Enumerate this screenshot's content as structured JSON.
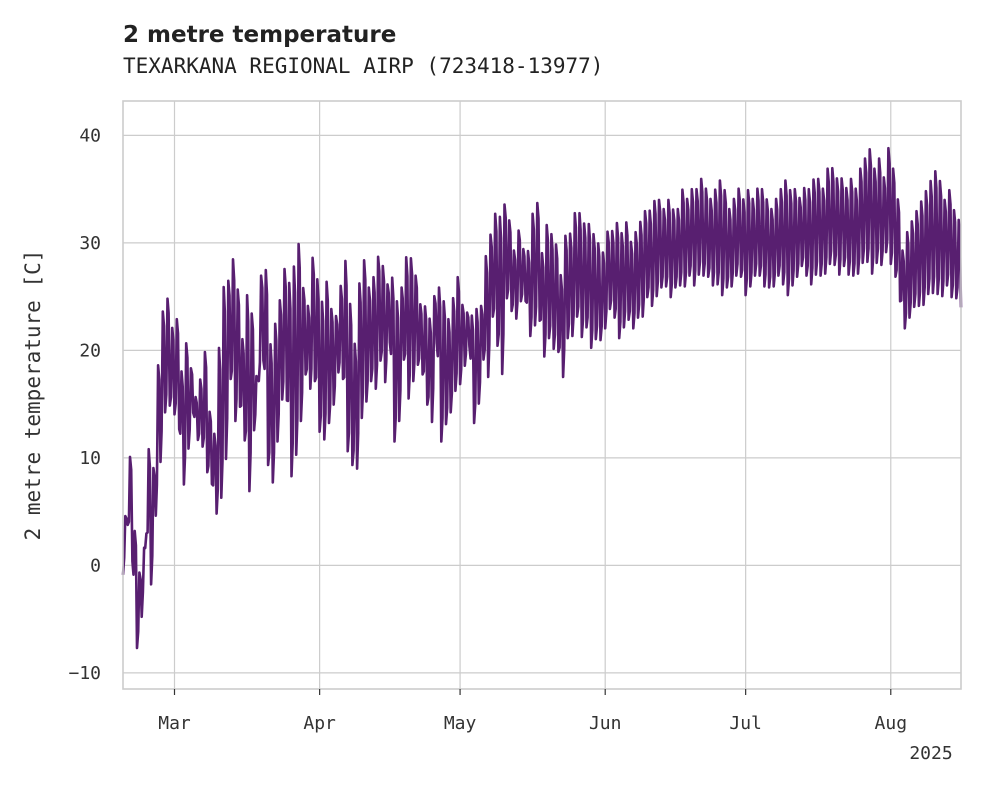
{
  "chart_data": {
    "type": "line",
    "title": "2 metre temperature",
    "subtitle": "TEXARKANA REGIONAL AIRP (723418-13977)",
    "xlabel": "",
    "ylabel": "2 metre temperature [C]",
    "x_range": [
      "2025-02-18",
      "2025-08-16"
    ],
    "ylim": [
      -11.5,
      43.2
    ],
    "grid": true,
    "line_color": "#581f70",
    "x_ticks": [
      {
        "date": "2025-03-01",
        "label": "Mar"
      },
      {
        "date": "2025-04-01",
        "label": "Apr"
      },
      {
        "date": "2025-05-01",
        "label": "May"
      },
      {
        "date": "2025-06-01",
        "label": "Jun"
      },
      {
        "date": "2025-07-01",
        "label": "Jul"
      },
      {
        "date": "2025-08-01",
        "label": "Aug"
      }
    ],
    "x_offset_label": "2025",
    "y_ticks": [
      -10,
      0,
      10,
      20,
      30,
      40
    ],
    "series": [
      {
        "name": "",
        "x": [
          "2025-02-18",
          "2025-02-19",
          "2025-02-20",
          "2025-02-21",
          "2025-02-22",
          "2025-02-23",
          "2025-02-24",
          "2025-02-25",
          "2025-02-26",
          "2025-02-27",
          "2025-02-28",
          "2025-03-01",
          "2025-03-02",
          "2025-03-03",
          "2025-03-04",
          "2025-03-05",
          "2025-03-06",
          "2025-03-07",
          "2025-03-08",
          "2025-03-09",
          "2025-03-10",
          "2025-03-11",
          "2025-03-12",
          "2025-03-13",
          "2025-03-14",
          "2025-03-15",
          "2025-03-16",
          "2025-03-17",
          "2025-03-18",
          "2025-03-19",
          "2025-03-20",
          "2025-03-21",
          "2025-03-22",
          "2025-03-23",
          "2025-03-24",
          "2025-03-25",
          "2025-03-26",
          "2025-03-27",
          "2025-03-28",
          "2025-03-29",
          "2025-03-30",
          "2025-03-31",
          "2025-04-01",
          "2025-04-02",
          "2025-04-03",
          "2025-04-04",
          "2025-04-05",
          "2025-04-06",
          "2025-04-07",
          "2025-04-08",
          "2025-04-09",
          "2025-04-10",
          "2025-04-11",
          "2025-04-12",
          "2025-04-13",
          "2025-04-14",
          "2025-04-15",
          "2025-04-16",
          "2025-04-17",
          "2025-04-18",
          "2025-04-19",
          "2025-04-20",
          "2025-04-21",
          "2025-04-22",
          "2025-04-23",
          "2025-04-24",
          "2025-04-25",
          "2025-04-26",
          "2025-04-27",
          "2025-04-28",
          "2025-04-29",
          "2025-04-30",
          "2025-05-01",
          "2025-05-02",
          "2025-05-03",
          "2025-05-04",
          "2025-05-05",
          "2025-05-06",
          "2025-05-07",
          "2025-05-08",
          "2025-05-09",
          "2025-05-10",
          "2025-05-11",
          "2025-05-12",
          "2025-05-13",
          "2025-05-14",
          "2025-05-15",
          "2025-05-16",
          "2025-05-17",
          "2025-05-18",
          "2025-05-19",
          "2025-05-20",
          "2025-05-21",
          "2025-05-22",
          "2025-05-23",
          "2025-05-24",
          "2025-05-25",
          "2025-05-26",
          "2025-05-27",
          "2025-05-28",
          "2025-05-29",
          "2025-05-30",
          "2025-05-31",
          "2025-06-01",
          "2025-06-02",
          "2025-06-03",
          "2025-06-04",
          "2025-06-05",
          "2025-06-06",
          "2025-06-07",
          "2025-06-08",
          "2025-06-09",
          "2025-06-10",
          "2025-06-11",
          "2025-06-12",
          "2025-06-13",
          "2025-06-14",
          "2025-06-15",
          "2025-06-16",
          "2025-06-17",
          "2025-06-18",
          "2025-06-19",
          "2025-06-20",
          "2025-06-21",
          "2025-06-22",
          "2025-06-23",
          "2025-06-24",
          "2025-06-25",
          "2025-06-26",
          "2025-06-27",
          "2025-06-28",
          "2025-06-29",
          "2025-06-30",
          "2025-07-01",
          "2025-07-02",
          "2025-07-03",
          "2025-07-04",
          "2025-07-05",
          "2025-07-06",
          "2025-07-07",
          "2025-07-08",
          "2025-07-09",
          "2025-07-10",
          "2025-07-11",
          "2025-07-12",
          "2025-07-13",
          "2025-07-14",
          "2025-07-15",
          "2025-07-16",
          "2025-07-17",
          "2025-07-18",
          "2025-07-19",
          "2025-07-20",
          "2025-07-21",
          "2025-07-22",
          "2025-07-23",
          "2025-07-24",
          "2025-07-25",
          "2025-07-26",
          "2025-07-27",
          "2025-07-28",
          "2025-07-29",
          "2025-07-30",
          "2025-07-31",
          "2025-08-01",
          "2025-08-02",
          "2025-08-03",
          "2025-08-04",
          "2025-08-05",
          "2025-08-06",
          "2025-08-07",
          "2025-08-08",
          "2025-08-09",
          "2025-08-10",
          "2025-08-11",
          "2025-08-12",
          "2025-08-13",
          "2025-08-14",
          "2025-08-15",
          "2025-08-16"
        ],
        "daily_min": [
          -1.5,
          3,
          0,
          -8.5,
          -5.5,
          2,
          -3,
          3,
          8,
          13,
          14,
          13,
          12,
          6,
          10,
          14,
          11,
          10,
          8,
          7,
          3,
          4,
          8,
          16,
          12,
          14,
          10,
          5,
          12,
          16,
          18,
          8,
          6,
          10,
          14,
          14,
          6,
          8,
          12,
          17,
          15,
          16,
          11,
          10,
          12,
          14,
          17,
          16,
          9,
          8,
          7,
          12,
          14,
          16,
          15,
          18,
          16,
          20,
          10,
          12,
          18,
          14,
          16,
          18,
          17,
          14,
          12,
          20,
          10,
          12,
          13,
          15,
          16,
          18,
          20,
          12,
          14,
          18,
          16,
          22,
          19,
          16,
          24,
          23,
          22,
          24,
          24,
          20,
          21,
          22,
          18,
          20,
          19,
          19,
          16,
          20,
          20,
          22,
          20,
          21,
          19,
          20,
          20,
          21,
          23,
          22,
          20,
          21,
          22,
          21,
          22,
          22,
          24,
          23,
          24,
          25,
          25,
          24,
          25,
          25,
          25,
          26,
          25,
          26,
          26,
          26,
          25,
          25,
          24,
          25,
          25,
          26,
          26,
          24,
          25,
          26,
          26,
          25,
          25,
          25,
          26,
          25,
          24,
          25,
          26,
          27,
          26,
          25,
          26,
          26,
          26,
          27,
          27,
          26,
          27,
          26,
          26,
          26,
          27,
          27,
          26,
          27,
          27,
          28,
          27,
          26,
          24,
          21,
          22,
          23,
          23,
          23,
          24,
          24,
          24,
          24,
          25,
          24,
          24,
          24,
          24,
          26
        ],
        "daily_max": [
          5,
          11,
          4,
          0,
          2,
          12,
          10,
          20,
          25,
          26,
          23,
          24,
          19,
          22,
          19,
          16,
          18,
          21,
          15,
          13,
          22,
          28,
          28,
          30,
          27,
          22,
          27,
          25,
          18,
          28,
          29,
          22,
          24,
          26,
          29,
          28,
          30,
          32,
          27,
          25,
          30,
          28,
          26,
          28,
          25,
          24,
          27,
          30,
          26,
          22,
          28,
          30,
          27,
          28,
          30,
          29,
          27,
          28,
          26,
          27,
          30,
          30,
          28,
          25,
          25,
          24,
          26,
          27,
          26,
          24,
          26,
          28,
          25,
          24,
          24,
          25,
          25,
          30,
          32,
          34,
          34,
          35,
          33,
          30,
          32,
          30,
          30,
          34,
          35,
          30,
          33,
          32,
          31,
          28,
          32,
          32,
          34,
          34,
          33,
          33,
          32,
          31,
          30,
          32,
          32,
          33,
          32,
          33,
          31,
          32,
          33,
          34,
          34,
          35,
          35,
          34,
          35,
          34,
          34,
          36,
          35,
          36,
          36,
          37,
          36,
          35,
          36,
          37,
          36,
          34,
          35,
          36,
          35,
          36,
          35,
          36,
          36,
          35,
          34,
          35,
          36,
          37,
          36,
          36,
          35,
          36,
          36,
          37,
          37,
          36,
          38,
          38,
          37,
          37,
          36,
          37,
          36,
          38,
          39,
          40,
          38,
          39,
          37,
          40,
          38,
          35,
          30,
          32,
          33,
          34,
          35,
          36,
          37,
          38,
          37,
          35,
          36,
          34,
          33,
          33,
          34,
          36
        ]
      }
    ]
  }
}
